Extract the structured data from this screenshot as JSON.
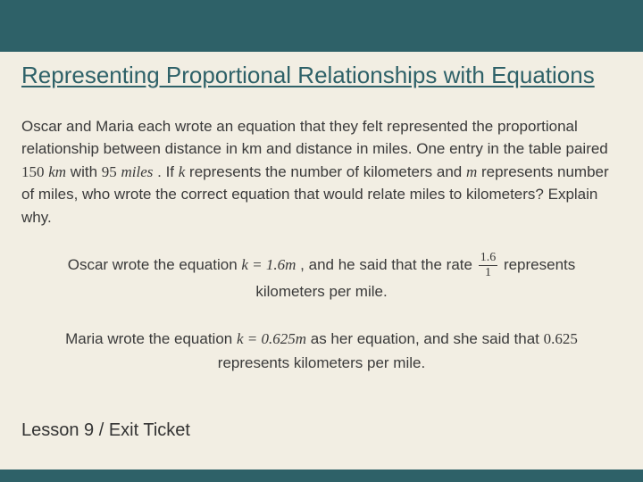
{
  "colors": {
    "background": "#f2eee3",
    "band": "#2e6168",
    "title": "#2e6168",
    "body_text": "#3a3a3a"
  },
  "typography": {
    "title_fontsize": 26,
    "body_fontsize": 17,
    "footer_fontsize": 20,
    "title_underline": true
  },
  "title": "Representing Proportional Relationships with Equations",
  "problem": {
    "intro1": "Oscar and Maria each wrote an equation that they felt represented the proportional relationship between distance in km and distance in miles. One entry in the table paired ",
    "pair_km_value": "150",
    "pair_km_unit": "km",
    "intro2": " with ",
    "pair_miles_value": "95",
    "pair_miles_unit": "miles",
    "intro3": ".  If ",
    "var_k": "k",
    "intro4": " represents the number of kilometers and ",
    "var_m": "m",
    "intro5": " represents number of miles, who wrote the correct equation that would relate miles to kilometers?  Explain why."
  },
  "oscar": {
    "pre": "Oscar wrote the equation ",
    "eqn": "k = 1.6m",
    "mid": ", and he said that the rate ",
    "frac_num": "1.6",
    "frac_den": "1",
    "post": " represents kilometers per mile."
  },
  "maria": {
    "pre": "Maria wrote the equation ",
    "eqn": "k = 0.625m",
    "mid": " as her equation, and she said that ",
    "value": "0.625",
    "post": " represents kilometers per mile."
  },
  "footer": "Lesson 9 / Exit Ticket"
}
